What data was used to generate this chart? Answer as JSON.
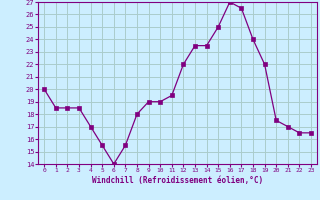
{
  "x": [
    0,
    1,
    2,
    3,
    4,
    5,
    6,
    7,
    8,
    9,
    10,
    11,
    12,
    13,
    14,
    15,
    16,
    17,
    18,
    19,
    20,
    21,
    22,
    23
  ],
  "y": [
    20,
    18.5,
    18.5,
    18.5,
    17,
    15.5,
    14,
    15.5,
    18,
    19,
    19,
    19.5,
    22,
    23.5,
    23.5,
    25,
    27,
    26.5,
    24,
    22,
    17.5,
    17,
    16.5,
    16.5
  ],
  "line_color": "#800080",
  "marker_color": "#800080",
  "bg_color": "#cceeff",
  "grid_color": "#aacccc",
  "axis_label_color": "#800080",
  "xlabel": "Windchill (Refroidissement éolien,°C)",
  "ylim": [
    14,
    27
  ],
  "xlim": [
    -0.5,
    23.5
  ],
  "yticks": [
    14,
    15,
    16,
    17,
    18,
    19,
    20,
    21,
    22,
    23,
    24,
    25,
    26,
    27
  ],
  "xticks": [
    0,
    1,
    2,
    3,
    4,
    5,
    6,
    7,
    8,
    9,
    10,
    11,
    12,
    13,
    14,
    15,
    16,
    17,
    18,
    19,
    20,
    21,
    22,
    23
  ]
}
